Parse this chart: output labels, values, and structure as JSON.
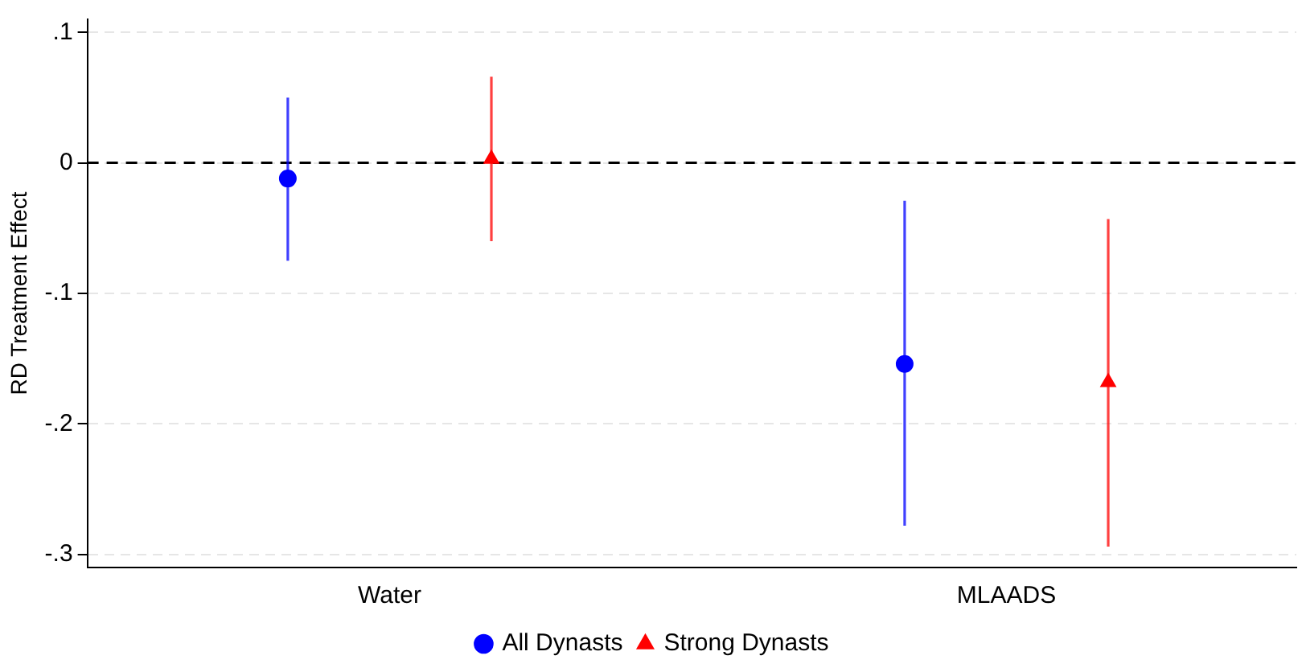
{
  "chart_data": {
    "type": "scatter",
    "ylabel": "RD Treatment Effect",
    "categories": [
      "Water",
      "MLAADS"
    ],
    "ylim": [
      -0.31,
      0.11
    ],
    "yticks": [
      {
        "value": 0.1,
        "label": ".1"
      },
      {
        "value": 0,
        "label": "0"
      },
      {
        "value": -0.1,
        "label": "-.1"
      },
      {
        "value": -0.2,
        "label": "-.2"
      },
      {
        "value": -0.3,
        "label": "-.3"
      }
    ],
    "grid": "y",
    "legend": "bottom",
    "ref_lines": [
      {
        "axis": "y",
        "value": 0,
        "color": "#000000",
        "line_style": "dashed"
      }
    ],
    "series": [
      {
        "name": "All Dynasts",
        "color": "#0000ff",
        "marker": "circle",
        "values": [
          -0.012,
          -0.154
        ],
        "errors": [
          [
            -0.075,
            0.05
          ],
          [
            -0.278,
            -0.029
          ]
        ]
      },
      {
        "name": "Strong Dynasts",
        "color": "#ff0000",
        "marker": "triangle",
        "values": [
          0.003,
          -0.168
        ],
        "errors": [
          [
            -0.06,
            0.066
          ],
          [
            -0.294,
            -0.043
          ]
        ]
      }
    ]
  }
}
